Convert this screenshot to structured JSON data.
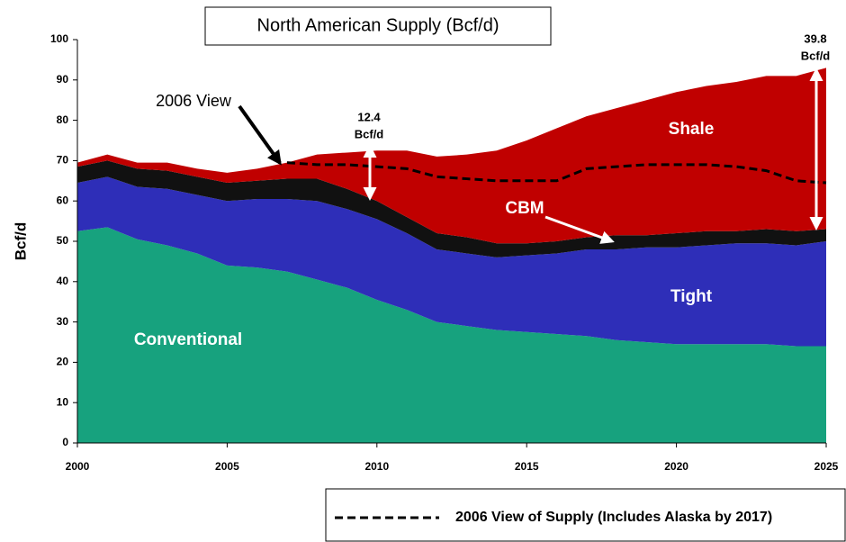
{
  "chart_data": {
    "type": "area",
    "title": "North American Supply (Bcf/d)",
    "ylabel": "Bcf/d",
    "x": [
      2000,
      2001,
      2002,
      2003,
      2004,
      2005,
      2006,
      2007,
      2008,
      2009,
      2010,
      2011,
      2012,
      2013,
      2014,
      2015,
      2016,
      2017,
      2018,
      2019,
      2020,
      2021,
      2022,
      2023,
      2024,
      2025
    ],
    "xlim": [
      2000,
      2025
    ],
    "xticks": [
      2000,
      2005,
      2010,
      2015,
      2020,
      2025
    ],
    "ylim": [
      0,
      100
    ],
    "yticks": [
      0,
      10,
      20,
      30,
      40,
      50,
      60,
      70,
      80,
      90,
      100
    ],
    "stacked": true,
    "series": [
      {
        "name": "Conventional",
        "color": "#17a27e",
        "values": [
          52.5,
          53.5,
          50.5,
          49,
          47,
          44,
          43.5,
          42.5,
          40.5,
          38.5,
          35.5,
          33,
          30,
          29,
          28,
          27.5,
          27,
          26.5,
          25.5,
          25,
          24.5,
          24.5,
          24.5,
          24.5,
          24,
          24
        ]
      },
      {
        "name": "Tight",
        "color": "#2e2eb8",
        "values": [
          12,
          12.5,
          13,
          14,
          14.5,
          16,
          17,
          18,
          19.5,
          19.5,
          20,
          19,
          18,
          18,
          18,
          19,
          20,
          21.5,
          22.5,
          23.5,
          24,
          24.5,
          25,
          25,
          25,
          26
        ]
      },
      {
        "name": "CBM",
        "color": "#111111",
        "values": [
          4,
          4,
          4.5,
          4.5,
          4.5,
          4.5,
          4.5,
          5,
          5.5,
          5,
          4.5,
          4,
          4,
          4,
          3.5,
          3,
          3,
          3,
          3.5,
          3,
          3.5,
          3.5,
          3,
          3.5,
          3.5,
          3
        ]
      },
      {
        "name": "Shale",
        "color": "#c00000",
        "values": [
          1,
          1.5,
          1.5,
          2,
          2,
          2.5,
          3,
          4,
          6,
          9,
          12.5,
          16.5,
          19,
          20.5,
          23,
          25.5,
          28,
          30,
          31.5,
          33.5,
          35,
          36,
          37,
          38,
          38.5,
          40
        ]
      }
    ],
    "overlay": {
      "name": "2006 View of Supply (Includes Alaska by 2017)",
      "color": "#000000",
      "style": "dashed",
      "values": [
        null,
        null,
        null,
        null,
        null,
        null,
        null,
        69.5,
        69,
        69,
        68.5,
        68,
        66,
        65.5,
        65,
        65,
        65,
        68,
        68.5,
        69,
        69,
        69,
        68.5,
        67.5,
        65,
        64.5
      ]
    },
    "annotations": [
      {
        "text": "2006 View"
      },
      {
        "lines": [
          "12.4",
          "Bcf/d"
        ]
      },
      {
        "lines": [
          "39.8",
          "Bcf/d"
        ]
      }
    ]
  }
}
